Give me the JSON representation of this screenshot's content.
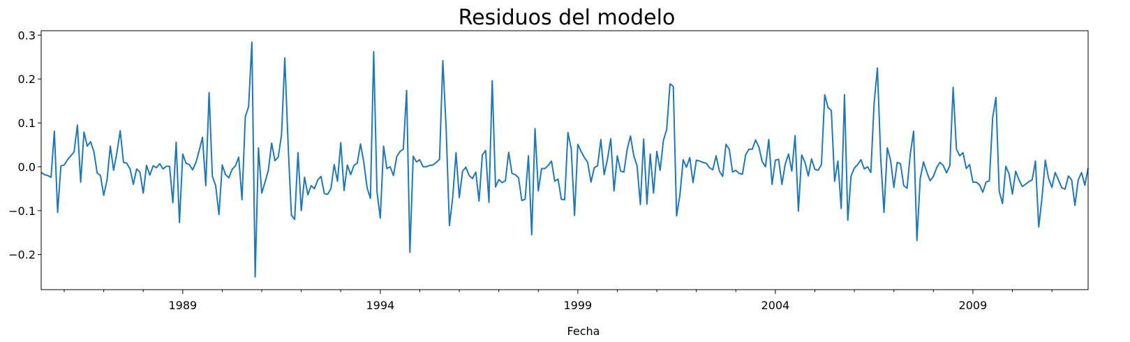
{
  "chart_data": {
    "type": "line",
    "title": "Residuos del modelo",
    "xlabel": "Fecha",
    "ylabel": "",
    "x_start": "1985-06",
    "x_end": "2011-12",
    "frequency": "monthly",
    "ylim": [
      -0.28,
      0.31
    ],
    "yticks": [
      {
        "value": -0.2,
        "label": "−0.2"
      },
      {
        "value": -0.1,
        "label": "−0.1"
      },
      {
        "value": 0.0,
        "label": "0.0"
      },
      {
        "value": 0.1,
        "label": "0.1"
      },
      {
        "value": 0.2,
        "label": "0.2"
      },
      {
        "value": 0.3,
        "label": "0.3"
      }
    ],
    "xticks": [
      {
        "value": "1989-01",
        "label": "1989"
      },
      {
        "value": "1994-01",
        "label": "1994"
      },
      {
        "value": "1999-01",
        "label": "1999"
      },
      {
        "value": "2004-01",
        "label": "2004"
      },
      {
        "value": "2009-01",
        "label": "2009"
      }
    ],
    "grid": false,
    "line_color": "#1f77b4",
    "series": [
      {
        "values": [
          -0.013,
          -0.018,
          -0.02,
          -0.024,
          0.081,
          -0.104,
          0.002,
          0.004,
          0.016,
          0.025,
          0.034,
          0.095,
          -0.035,
          0.079,
          0.047,
          0.057,
          0.035,
          -0.014,
          -0.02,
          -0.065,
          -0.03,
          0.047,
          -0.008,
          0.032,
          0.082,
          0.01,
          0.008,
          -0.005,
          -0.04,
          -0.005,
          -0.012,
          -0.06,
          0.003,
          -0.019,
          0.002,
          -0.002,
          0.007,
          -0.005,
          0.001,
          0.001,
          -0.082,
          0.056,
          -0.127,
          0.029,
          0.008,
          0.005,
          -0.007,
          0.01,
          0.037,
          0.067,
          -0.043,
          0.169,
          -0.022,
          -0.043,
          -0.109,
          0.004,
          -0.018,
          -0.025,
          -0.006,
          0.002,
          0.022,
          -0.075,
          0.114,
          0.137,
          0.284,
          -0.251,
          0.043,
          -0.06,
          -0.035,
          -0.008,
          0.054,
          0.014,
          0.022,
          0.072,
          0.248,
          0.052,
          -0.11,
          -0.12,
          0.032,
          -0.1,
          -0.024,
          -0.064,
          -0.043,
          -0.05,
          -0.03,
          -0.022,
          -0.061,
          -0.063,
          -0.05,
          0.005,
          -0.033,
          0.055,
          -0.054,
          0.004,
          -0.018,
          0.003,
          0.008,
          0.052,
          0.01,
          -0.048,
          -0.072,
          0.262,
          -0.057,
          -0.117,
          0.047,
          -0.004,
          0.0,
          -0.02,
          0.023,
          0.035,
          0.04,
          0.174,
          -0.195,
          0.024,
          0.011,
          0.016,
          0.0,
          0.0,
          0.003,
          0.004,
          0.01,
          0.017,
          0.242,
          0.087,
          -0.134,
          -0.07,
          0.032,
          -0.07,
          -0.01,
          -0.001,
          -0.02,
          -0.027,
          -0.012,
          -0.078,
          0.027,
          0.037,
          -0.081,
          0.196,
          -0.046,
          -0.029,
          -0.036,
          -0.032,
          0.033,
          -0.015,
          -0.018,
          -0.025,
          -0.077,
          -0.074,
          0.025,
          -0.155,
          0.087,
          -0.055,
          -0.004,
          -0.004,
          0.003,
          0.013,
          -0.033,
          -0.028,
          -0.074,
          -0.075,
          0.078,
          0.041,
          -0.111,
          0.051,
          0.035,
          0.021,
          0.01,
          -0.035,
          -0.002,
          0.002,
          0.062,
          -0.018,
          0.017,
          0.064,
          -0.055,
          0.025,
          -0.01,
          -0.012,
          0.04,
          0.07,
          0.025,
          0.002,
          -0.086,
          0.063,
          -0.085,
          0.029,
          -0.06,
          0.035,
          -0.008,
          0.06,
          0.085,
          0.189,
          0.183,
          -0.112,
          -0.065,
          0.016,
          -0.001,
          0.021,
          -0.036,
          0.015,
          0.013,
          0.01,
          0.008,
          -0.002,
          -0.007,
          0.025,
          -0.01,
          -0.022,
          0.051,
          0.04,
          -0.012,
          -0.008,
          -0.015,
          -0.017,
          0.028,
          0.04,
          0.04,
          0.061,
          0.045,
          0.012,
          0.0,
          0.062,
          -0.04,
          0.015,
          0.017,
          -0.04,
          0.006,
          0.029,
          -0.01,
          0.071,
          -0.101,
          0.027,
          0.01,
          -0.021,
          0.018,
          -0.006,
          -0.008,
          0.005,
          0.164,
          0.135,
          0.128,
          -0.033,
          0.013,
          -0.095,
          0.164,
          -0.122,
          -0.021,
          -0.003,
          0.005,
          0.016,
          -0.005,
          0.0,
          -0.013,
          0.145,
          0.225,
          0.02,
          -0.104,
          0.043,
          0.015,
          -0.047,
          0.01,
          0.007,
          -0.043,
          -0.049,
          0.03,
          0.081,
          -0.168,
          -0.027,
          0.011,
          -0.012,
          -0.032,
          -0.022,
          -0.002,
          0.01,
          0.003,
          -0.014,
          0.003,
          0.181,
          0.04,
          0.025,
          0.032,
          -0.004,
          0.005,
          -0.035,
          -0.035,
          -0.041,
          -0.058,
          -0.035,
          -0.032,
          0.111,
          0.158,
          -0.056,
          -0.084,
          0.001,
          -0.017,
          -0.062,
          -0.01,
          -0.03,
          -0.045,
          -0.04,
          -0.034,
          -0.03,
          0.013,
          -0.137,
          -0.07,
          0.015,
          -0.027,
          -0.047,
          -0.013,
          -0.03,
          -0.048,
          -0.051,
          -0.021,
          -0.03,
          -0.088,
          -0.03,
          -0.013,
          -0.042,
          -0.003
        ]
      }
    ]
  }
}
